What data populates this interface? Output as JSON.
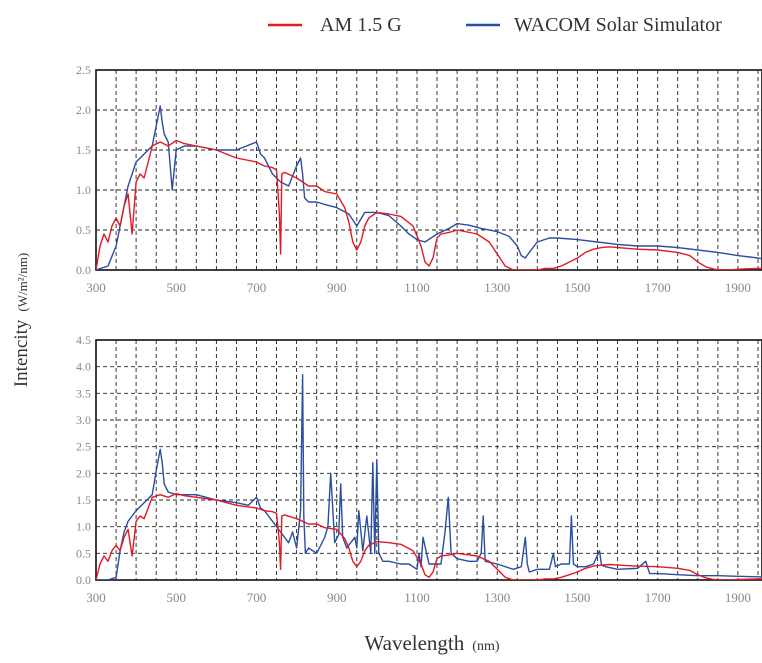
{
  "figure": {
    "ylabel_main": "Intencity",
    "ylabel_unit": "(W/m²/nm)",
    "xlabel_main": "Wavelength",
    "xlabel_unit": "(nm)"
  },
  "legend": {
    "items": [
      {
        "name": "AM 1.5 G",
        "color": "#e01b24"
      },
      {
        "name": "WACOM Solar Simulator",
        "color": "#2a4ea0"
      }
    ]
  },
  "chart_data": [
    {
      "type": "line",
      "xlim": [
        300,
        1960
      ],
      "ylim": [
        0,
        2.5
      ],
      "grid": true,
      "legend_position": "top-right",
      "x_ticks": [
        300,
        500,
        700,
        900,
        1100,
        1300,
        1500,
        1700,
        1900
      ],
      "y_ticks": [
        0.0,
        0.5,
        1.0,
        1.5,
        2.0,
        2.5
      ],
      "y_tick_labels": [
        "0.0",
        "0.5",
        "1.0",
        "1.5",
        "2.0",
        "2.5"
      ],
      "series": [
        {
          "name": "AM 1.5 G",
          "color": "#e01b24",
          "x": [
            300,
            310,
            320,
            330,
            340,
            350,
            360,
            370,
            380,
            390,
            400,
            410,
            420,
            430,
            440,
            460,
            480,
            500,
            520,
            550,
            600,
            650,
            700,
            720,
            740,
            750,
            757,
            760,
            763,
            770,
            800,
            830,
            850,
            870,
            900,
            920,
            930,
            940,
            950,
            960,
            970,
            980,
            1000,
            1030,
            1060,
            1090,
            1110,
            1120,
            1130,
            1140,
            1150,
            1160,
            1180,
            1200,
            1250,
            1280,
            1300,
            1320,
            1340,
            1360,
            1380,
            1400,
            1420,
            1440,
            1460,
            1480,
            1500,
            1520,
            1540,
            1560,
            1580,
            1600,
            1650,
            1700,
            1750,
            1780,
            1800,
            1820,
            1840,
            1860,
            1880,
            1900,
            1950,
            1960
          ],
          "y": [
            0.0,
            0.3,
            0.45,
            0.35,
            0.55,
            0.65,
            0.55,
            0.8,
            0.95,
            0.45,
            1.1,
            1.2,
            1.15,
            1.35,
            1.55,
            1.6,
            1.55,
            1.62,
            1.58,
            1.55,
            1.5,
            1.4,
            1.35,
            1.3,
            1.28,
            1.25,
            0.7,
            0.2,
            1.2,
            1.22,
            1.15,
            1.05,
            1.05,
            0.98,
            0.95,
            0.78,
            0.6,
            0.35,
            0.25,
            0.35,
            0.55,
            0.65,
            0.72,
            0.7,
            0.67,
            0.55,
            0.3,
            0.1,
            0.05,
            0.15,
            0.4,
            0.45,
            0.47,
            0.5,
            0.45,
            0.35,
            0.2,
            0.05,
            0.0,
            0.0,
            0.0,
            0.0,
            0.02,
            0.02,
            0.05,
            0.1,
            0.15,
            0.22,
            0.26,
            0.28,
            0.29,
            0.28,
            0.26,
            0.25,
            0.22,
            0.18,
            0.1,
            0.04,
            0.01,
            0.0,
            0.0,
            0.01,
            0.02,
            0.02
          ]
        },
        {
          "name": "WACOM Solar Simulator",
          "color": "#2a4ea0",
          "x": [
            300,
            330,
            350,
            360,
            370,
            380,
            390,
            400,
            420,
            440,
            450,
            460,
            465,
            470,
            480,
            490,
            500,
            520,
            550,
            600,
            650,
            700,
            710,
            720,
            740,
            760,
            780,
            800,
            810,
            815,
            820,
            830,
            850,
            870,
            900,
            930,
            950,
            970,
            1000,
            1030,
            1060,
            1080,
            1100,
            1120,
            1150,
            1180,
            1200,
            1230,
            1260,
            1300,
            1330,
            1350,
            1360,
            1370,
            1380,
            1400,
            1430,
            1450,
            1500,
            1550,
            1600,
            1650,
            1700,
            1750,
            1800,
            1850,
            1900,
            1950,
            1960
          ],
          "y": [
            0.0,
            0.05,
            0.3,
            0.55,
            0.8,
            1.05,
            1.2,
            1.35,
            1.45,
            1.55,
            1.8,
            2.05,
            1.85,
            1.7,
            1.6,
            1.0,
            1.5,
            1.55,
            1.55,
            1.5,
            1.5,
            1.6,
            1.45,
            1.4,
            1.2,
            1.1,
            1.05,
            1.3,
            1.4,
            1.2,
            0.9,
            0.85,
            0.85,
            0.82,
            0.78,
            0.7,
            0.55,
            0.72,
            0.72,
            0.68,
            0.55,
            0.45,
            0.38,
            0.35,
            0.45,
            0.52,
            0.58,
            0.56,
            0.52,
            0.48,
            0.42,
            0.3,
            0.18,
            0.15,
            0.22,
            0.35,
            0.4,
            0.4,
            0.38,
            0.35,
            0.32,
            0.3,
            0.3,
            0.28,
            0.25,
            0.22,
            0.18,
            0.15,
            0.14
          ]
        }
      ]
    },
    {
      "type": "line",
      "xlim": [
        300,
        1960
      ],
      "ylim": [
        0,
        4.5
      ],
      "grid": true,
      "x_ticks": [
        300,
        500,
        700,
        900,
        1100,
        1300,
        1500,
        1700,
        1900
      ],
      "y_ticks": [
        0.0,
        0.5,
        1.0,
        1.5,
        2.0,
        2.5,
        3.0,
        3.5,
        4.0,
        4.5
      ],
      "y_tick_labels": [
        "0.0",
        "0.5",
        "1.0",
        "1.5",
        "2.0",
        "2.5",
        "3.0",
        "3.5",
        "4.0",
        "4.5"
      ],
      "series": [
        {
          "name": "AM 1.5 G",
          "color": "#e01b24",
          "x": [
            300,
            310,
            320,
            330,
            340,
            350,
            360,
            370,
            380,
            390,
            400,
            410,
            420,
            430,
            440,
            460,
            480,
            500,
            520,
            550,
            600,
            650,
            700,
            720,
            740,
            750,
            757,
            760,
            763,
            770,
            800,
            830,
            850,
            870,
            900,
            920,
            930,
            940,
            950,
            960,
            970,
            980,
            1000,
            1030,
            1060,
            1090,
            1110,
            1120,
            1130,
            1140,
            1150,
            1160,
            1180,
            1200,
            1250,
            1280,
            1300,
            1320,
            1340,
            1360,
            1380,
            1400,
            1420,
            1440,
            1460,
            1480,
            1500,
            1520,
            1540,
            1560,
            1580,
            1600,
            1650,
            1700,
            1750,
            1780,
            1800,
            1820,
            1840,
            1860,
            1880,
            1900,
            1950,
            1960
          ],
          "y": [
            0.0,
            0.3,
            0.45,
            0.35,
            0.55,
            0.65,
            0.55,
            0.8,
            0.95,
            0.45,
            1.1,
            1.2,
            1.15,
            1.35,
            1.55,
            1.6,
            1.55,
            1.62,
            1.58,
            1.55,
            1.5,
            1.4,
            1.35,
            1.3,
            1.28,
            1.25,
            0.7,
            0.2,
            1.2,
            1.22,
            1.15,
            1.05,
            1.05,
            0.98,
            0.95,
            0.78,
            0.6,
            0.35,
            0.25,
            0.35,
            0.55,
            0.65,
            0.72,
            0.7,
            0.67,
            0.55,
            0.3,
            0.1,
            0.05,
            0.15,
            0.4,
            0.45,
            0.47,
            0.5,
            0.45,
            0.35,
            0.2,
            0.05,
            0.0,
            0.0,
            0.0,
            0.0,
            0.02,
            0.02,
            0.05,
            0.1,
            0.15,
            0.22,
            0.26,
            0.28,
            0.29,
            0.28,
            0.26,
            0.25,
            0.22,
            0.18,
            0.1,
            0.04,
            0.01,
            0.0,
            0.0,
            0.01,
            0.02,
            0.02
          ]
        },
        {
          "name": "WACOM Solar Simulator",
          "color": "#2a4ea0",
          "x": [
            300,
            330,
            350,
            360,
            370,
            380,
            390,
            400,
            420,
            440,
            450,
            460,
            465,
            470,
            480,
            500,
            550,
            600,
            650,
            680,
            700,
            710,
            720,
            740,
            760,
            780,
            790,
            800,
            810,
            815,
            818,
            822,
            830,
            850,
            870,
            878,
            885,
            895,
            905,
            910,
            915,
            925,
            945,
            950,
            955,
            965,
            975,
            985,
            990,
            995,
            1000,
            1005,
            1015,
            1030,
            1060,
            1080,
            1100,
            1105,
            1110,
            1115,
            1130,
            1160,
            1170,
            1178,
            1185,
            1200,
            1230,
            1250,
            1260,
            1265,
            1270,
            1300,
            1340,
            1360,
            1370,
            1375,
            1380,
            1400,
            1430,
            1440,
            1445,
            1460,
            1480,
            1485,
            1490,
            1500,
            1520,
            1540,
            1555,
            1560,
            1570,
            1600,
            1650,
            1670,
            1680,
            1700,
            1750,
            1800,
            1850,
            1900,
            1950,
            1960
          ],
          "y": [
            0.0,
            0.0,
            0.05,
            0.55,
            0.9,
            1.1,
            1.2,
            1.3,
            1.45,
            1.6,
            2.05,
            2.45,
            2.2,
            1.8,
            1.65,
            1.6,
            1.6,
            1.5,
            1.45,
            1.4,
            1.55,
            1.35,
            1.3,
            1.1,
            0.9,
            0.7,
            0.9,
            0.6,
            1.3,
            3.85,
            1.2,
            0.5,
            0.6,
            0.5,
            0.8,
            1.0,
            2.0,
            0.7,
            0.85,
            1.8,
            0.8,
            0.6,
            0.8,
            0.6,
            1.3,
            0.55,
            1.2,
            0.5,
            2.2,
            0.5,
            2.25,
            0.5,
            0.35,
            0.35,
            0.3,
            0.3,
            0.2,
            0.5,
            0.25,
            0.8,
            0.3,
            0.3,
            0.9,
            1.55,
            0.5,
            0.4,
            0.35,
            0.35,
            0.5,
            1.2,
            0.35,
            0.3,
            0.2,
            0.25,
            0.8,
            0.3,
            0.15,
            0.2,
            0.2,
            0.5,
            0.25,
            0.3,
            0.3,
            1.2,
            0.3,
            0.25,
            0.25,
            0.3,
            0.55,
            0.28,
            0.25,
            0.2,
            0.22,
            0.35,
            0.12,
            0.12,
            0.1,
            0.08,
            0.08,
            0.07,
            0.06,
            0.06
          ]
        }
      ]
    }
  ]
}
